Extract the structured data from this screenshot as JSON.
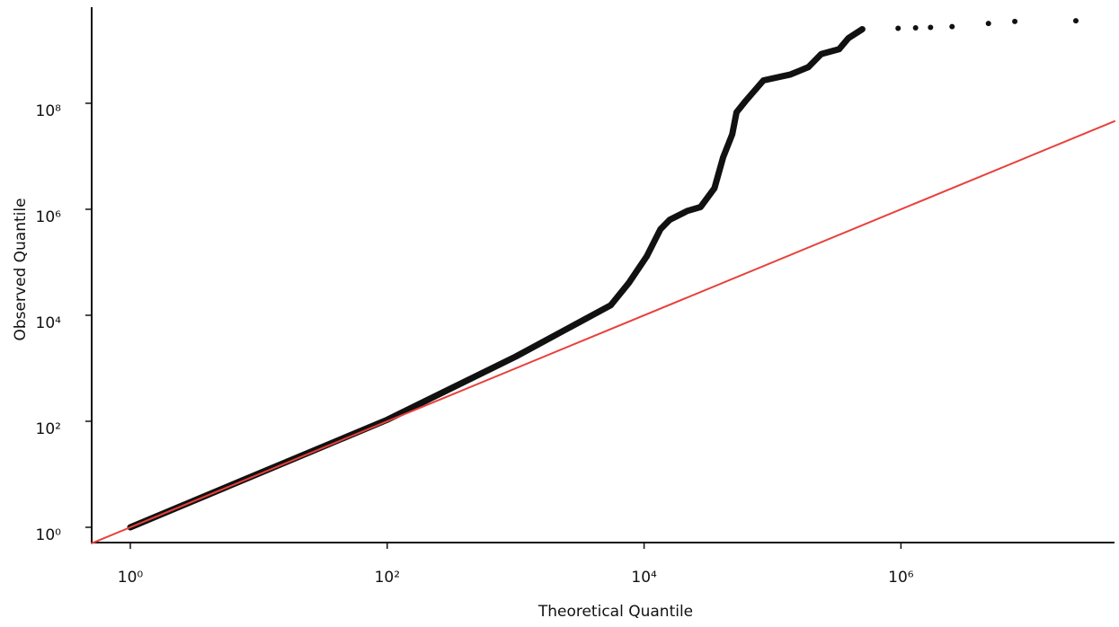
{
  "chart_data": {
    "type": "scatter",
    "x_label": "Theoretical Quantile",
    "y_label": "Observed Quantile",
    "log_x": true,
    "log_y": true,
    "xlim": [
      0.5,
      46000000
    ],
    "ylim": [
      0.515,
      6500000000
    ],
    "xticks": [
      {
        "value": 1,
        "label": "10⁰"
      },
      {
        "value": 100,
        "label": "10²"
      },
      {
        "value": 10000,
        "label": "10⁴"
      },
      {
        "value": 1000000,
        "label": "10⁶"
      }
    ],
    "yticks": [
      {
        "value": 1,
        "label": "10⁰"
      },
      {
        "value": 100,
        "label": "10²"
      },
      {
        "value": 10000,
        "label": "10⁴"
      },
      {
        "value": 1000000,
        "label": "10⁶"
      },
      {
        "value": 100000000,
        "label": "10⁸"
      }
    ],
    "series": [
      {
        "style": "line",
        "color": "#111111",
        "x": [
          1,
          100,
          1000,
          5500,
          7600,
          10500,
          13400,
          15800,
          21700,
          27500,
          35300,
          41300,
          48600,
          52500,
          61700,
          85000,
          138000,
          190000,
          240000,
          330000,
          390000,
          500000
        ],
        "values": [
          1,
          107,
          1660,
          15500,
          40700,
          130000,
          420000,
          630000,
          930000,
          1100000,
          2500000,
          9600000,
          26000000,
          68000000,
          110000000,
          270000000,
          350000000,
          480000000,
          850000000,
          1050000000,
          1700000000,
          2500000000
        ]
      },
      {
        "style": "markers",
        "color": "#111111",
        "x": [
          950000,
          1300000,
          1700000,
          2500000,
          4800000,
          7700000,
          23000000
        ],
        "values": [
          2600000000,
          2650000000,
          2700000000,
          2800000000,
          3200000000,
          3500000000,
          3600000000
        ]
      },
      {
        "style": "line",
        "color": "#e8413a",
        "width": 2,
        "x": [
          0.5,
          46000000
        ],
        "values": [
          0.5,
          46000000
        ]
      }
    ]
  }
}
